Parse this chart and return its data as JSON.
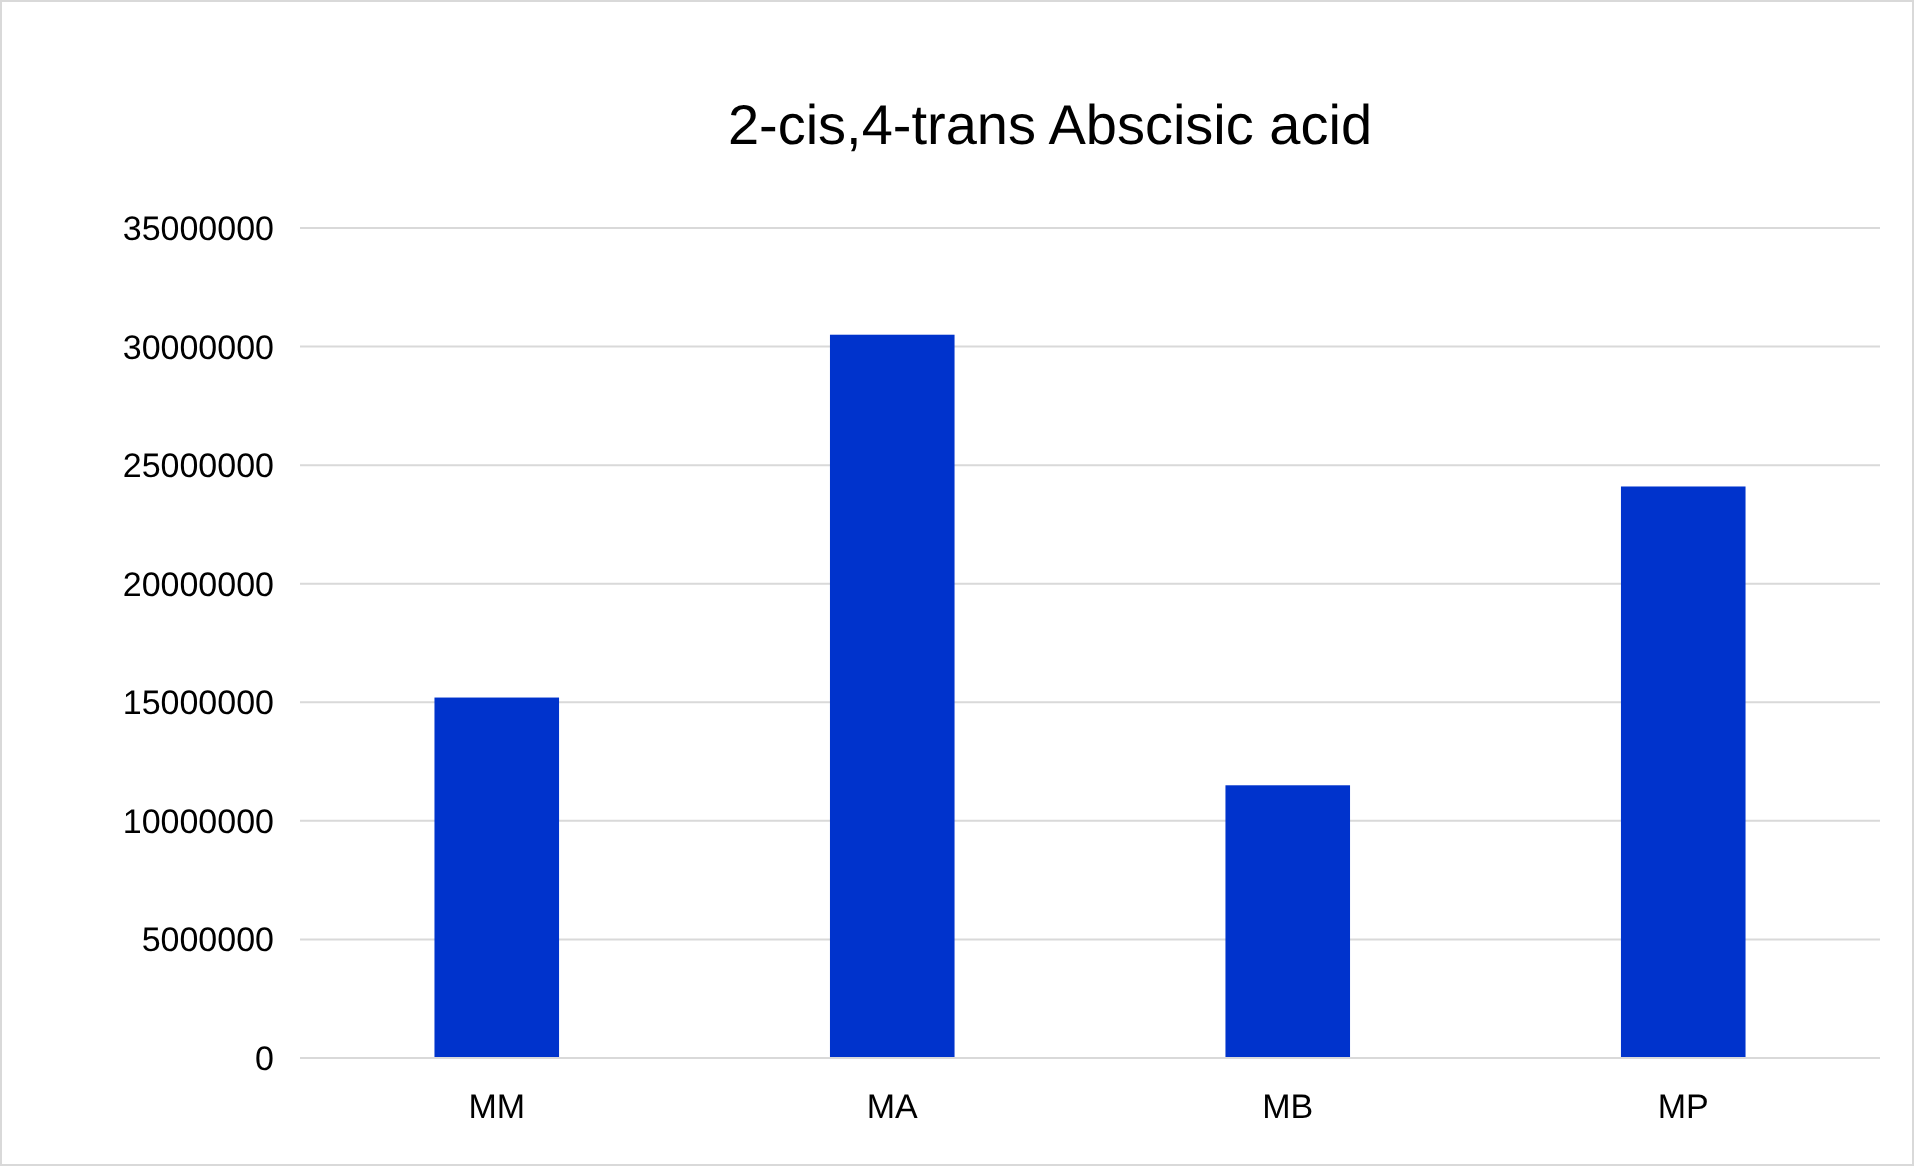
{
  "chart_data": {
    "type": "bar",
    "title": "2-cis,4-trans Abscisic acid",
    "categories": [
      "MM",
      "MA",
      "MB",
      "MP"
    ],
    "values": [
      15200000,
      30500000,
      11500000,
      24100000
    ],
    "color": "#0033cc",
    "ylim": [
      0,
      35000000
    ],
    "yticks": [
      0,
      5000000,
      10000000,
      15000000,
      20000000,
      25000000,
      30000000,
      35000000
    ],
    "grid": "y"
  }
}
